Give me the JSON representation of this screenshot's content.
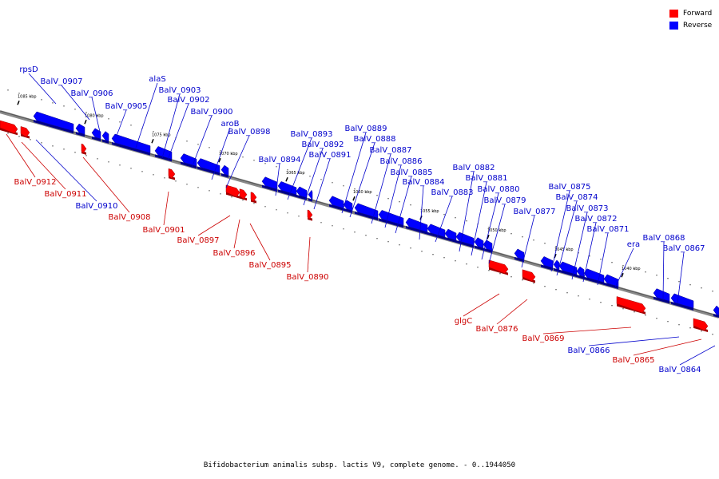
{
  "legend": {
    "forward_label": "Forward",
    "reverse_label": "Reverse",
    "forward_color": "#ff0000",
    "reverse_color": "#0000ff"
  },
  "caption": "Bifidobacterium animalis subsp. lactis V9, complete genome. - 0..1944050",
  "kbp_ticks": [
    "1085 kbp",
    "1080 kbp",
    "1075 kbp",
    "1070 kbp",
    "1065 kbp",
    "1060 kbp",
    "1055 kbp",
    "1050 kbp",
    "1045 kbp",
    "1040 kbp"
  ],
  "genes_forward_top": [
    {
      "name": "BalV_0897",
      "arrow": "up"
    },
    {
      "name": "BalV_0896",
      "arrow": "up"
    },
    {
      "name": "BalV_0890",
      "arrow": "up"
    },
    {
      "name": "glgC",
      "arrow": "up"
    },
    {
      "name": "BalV_0876",
      "arrow": "up"
    }
  ],
  "gene_labels": {
    "reverse_above": [
      "rpsD",
      "BalV_0907",
      "BalV_0906",
      "BalV_0905",
      "alaS",
      "BalV_0903",
      "BalV_0902",
      "BalV_0900",
      "aroB",
      "BalV_0898",
      "BalV_0894",
      "BalV_0893",
      "BalV_0892",
      "BalV_0891",
      "BalV_0889",
      "BalV_0888",
      "BalV_0887",
      "BalV_0886",
      "BalV_0885",
      "BalV_0884",
      "BalV_0883",
      "BalV_0882",
      "BalV_0881",
      "BalV_0880",
      "BalV_0879",
      "BalV_0877",
      "BalV_0875",
      "BalV_0874",
      "BalV_0873",
      "BalV_0872",
      "BalV_0871",
      "era",
      "BalV_0868",
      "BalV_0867"
    ],
    "forward_below": [
      "BalV_0912",
      "BalV_0911",
      "BalV_0908",
      "BalV_0901",
      "BalV_0897",
      "BalV_0896",
      "BalV_0895",
      "BalV_0890",
      "glgC",
      "BalV_0876",
      "BalV_0869",
      "BalV_0865"
    ],
    "reverse_below": [
      "BalV_0910",
      "BalV_0866",
      "BalV_0864"
    ]
  }
}
